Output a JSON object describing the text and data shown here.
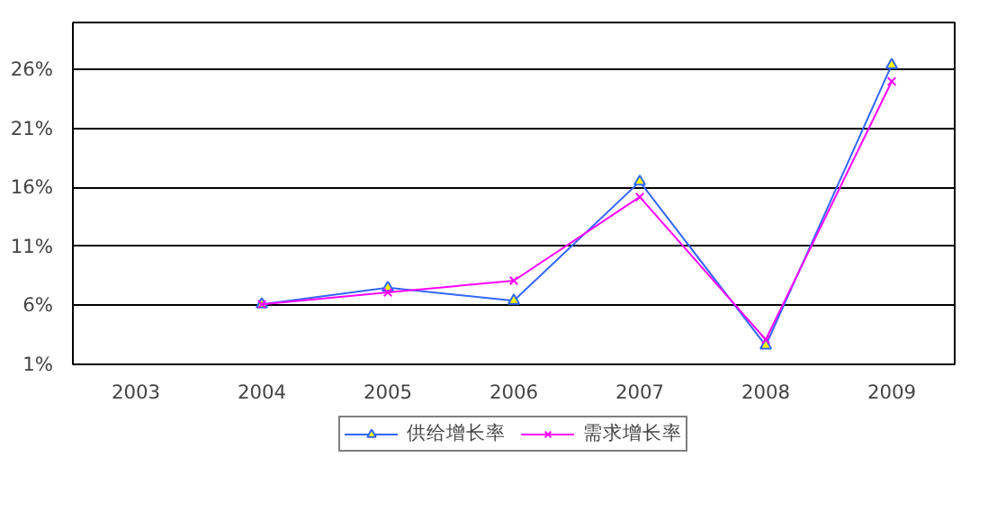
{
  "chart_data": {
    "type": "line",
    "categories": [
      "2003",
      "2004",
      "2005",
      "2006",
      "2007",
      "2008",
      "2009"
    ],
    "series": [
      {
        "name": "供给增长率",
        "color": "#3366ff",
        "marker": "triangle",
        "values": [
          null,
          6.1,
          7.5,
          6.4,
          16.5,
          2.6,
          26.4
        ]
      },
      {
        "name": "需求增长率",
        "color": "#ff00ff",
        "marker": "cross",
        "values": [
          null,
          6.1,
          7.1,
          8.1,
          15.2,
          3.1,
          25.0
        ]
      }
    ],
    "ylim": [
      1,
      30
    ],
    "yticks": [
      {
        "value": 1,
        "label": "1%"
      },
      {
        "value": 6,
        "label": "6%"
      },
      {
        "value": 11,
        "label": "11%"
      },
      {
        "value": 16,
        "label": "16%"
      },
      {
        "value": 21,
        "label": "21%"
      },
      {
        "value": 26,
        "label": "26%"
      }
    ],
    "grid": "y",
    "legend": "bottom",
    "line_style": "solid"
  }
}
